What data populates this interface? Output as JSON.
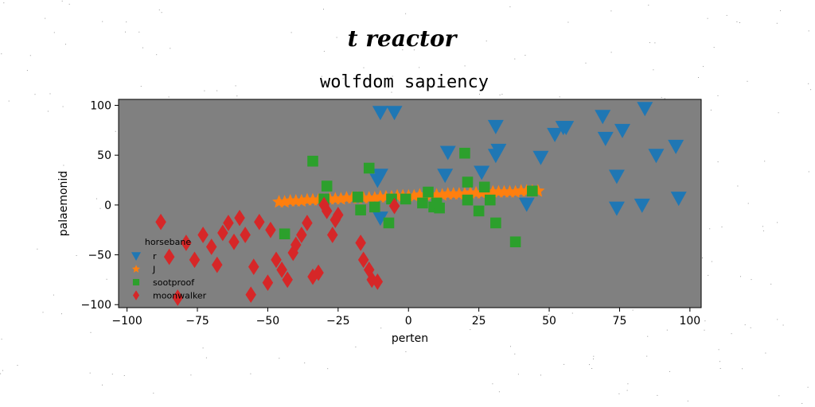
{
  "chart_data": {
    "type": "scatter",
    "suptitle": "t reactor",
    "title": "wolfdom sapiency",
    "xlabel": "perten",
    "ylabel": "palaemonid",
    "xlim": [
      -103,
      104
    ],
    "ylim": [
      -103,
      106
    ],
    "xticks": [
      -100,
      -75,
      -50,
      -25,
      0,
      25,
      50,
      75,
      100
    ],
    "yticks": [
      100,
      50,
      0,
      -50,
      -100
    ],
    "tick_labels_x": [
      "−100",
      "−75",
      "−50",
      "−25",
      "0",
      "25",
      "50",
      "75",
      "100"
    ],
    "tick_labels_y": [
      "100",
      "50",
      "0",
      "−50",
      "−100"
    ],
    "background": "#808080",
    "legend": {
      "title": "horsebane",
      "placement": "lower-left"
    },
    "series": [
      {
        "name": "r",
        "marker": "triangle-down",
        "color": "#1f77b4",
        "x": [
          -10,
          -5,
          -10,
          -11,
          -10,
          14,
          13,
          31,
          32,
          31,
          26,
          47,
          52,
          55,
          56,
          69,
          70,
          76,
          74,
          74,
          84,
          88,
          95,
          96,
          83,
          42
        ],
        "y": [
          93,
          93,
          30,
          25,
          -13,
          53,
          30,
          79,
          55,
          50,
          33,
          48,
          71,
          78,
          78,
          89,
          67,
          75,
          29,
          -3,
          97,
          50,
          59,
          7,
          0,
          1
        ]
      },
      {
        "name": "J",
        "marker": "star",
        "color": "#ff7f0e",
        "x": [
          -46,
          -44,
          -42,
          -40,
          -38,
          -36,
          -34,
          -32,
          -30,
          -28,
          -26,
          -24,
          -22,
          -20,
          -18,
          -16,
          -14,
          -12,
          -10,
          -8,
          -6,
          -4,
          -2,
          0,
          2,
          4,
          6,
          8,
          10,
          12,
          14,
          16,
          18,
          20,
          22,
          24,
          26,
          28,
          30,
          32,
          34,
          36,
          38,
          40,
          42,
          44,
          46
        ],
        "y": [
          3,
          3,
          4,
          4,
          4,
          5,
          5,
          5,
          5,
          6,
          6,
          6,
          7,
          7,
          7,
          7,
          7,
          7,
          8,
          8,
          8,
          9,
          9,
          9,
          9,
          10,
          10,
          10,
          10,
          10,
          11,
          11,
          11,
          11,
          12,
          12,
          12,
          13,
          13,
          13,
          13,
          13,
          13,
          14,
          14,
          14,
          14
        ]
      },
      {
        "name": "sootproof",
        "marker": "square",
        "color": "#2ca02c",
        "x": [
          -34,
          -29,
          -30,
          -18,
          -17,
          -14,
          -12,
          -7,
          -6,
          -1,
          5,
          7,
          9,
          10,
          11,
          20,
          21,
          21,
          25,
          27,
          29,
          31,
          38,
          44,
          -44
        ],
        "y": [
          44,
          19,
          6,
          8,
          -5,
          37,
          -2,
          -18,
          6,
          6,
          2,
          13,
          -2,
          2,
          -3,
          52,
          23,
          5,
          -6,
          18,
          5,
          -18,
          -37,
          14,
          -29
        ]
      },
      {
        "name": "moonwalker",
        "marker": "diamond",
        "color": "#d62728",
        "x": [
          -88,
          -85,
          -82,
          -79,
          -76,
          -73,
          -70,
          -68,
          -66,
          -64,
          -62,
          -60,
          -58,
          -56,
          -55,
          -53,
          -50,
          -49,
          -47,
          -45,
          -43,
          -41,
          -40,
          -38,
          -36,
          -34,
          -32,
          -30,
          -29,
          -27,
          -26,
          -25,
          -17,
          -16,
          -14,
          -13,
          -11,
          -5
        ],
        "y": [
          -17,
          -52,
          -93,
          -38,
          -55,
          -30,
          -42,
          -60,
          -28,
          -18,
          -37,
          -13,
          -30,
          -90,
          -62,
          -17,
          -78,
          -25,
          -55,
          -65,
          -75,
          -48,
          -40,
          -30,
          -18,
          -72,
          -68,
          0,
          -6,
          -30,
          -15,
          -10,
          -38,
          -55,
          -65,
          -75,
          -77,
          -1
        ]
      }
    ]
  }
}
